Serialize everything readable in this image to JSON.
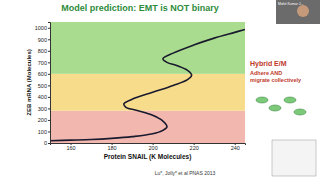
{
  "chart_data": {
    "type": "line",
    "title": "Model prediction: EMT is NOT binary",
    "x_label": "Protein SNAIL (K Molecules)",
    "y_label": "ZEB mRNA (Molecules)",
    "xlim": [
      150,
      245
    ],
    "xticks": [
      160,
      180,
      200,
      220,
      240
    ],
    "ylim": [
      0,
      1050
    ],
    "yticks": [
      0,
      100,
      200,
      300,
      400,
      500,
      600,
      700,
      800,
      900,
      1000
    ],
    "bands": [
      {
        "from": 0,
        "to": 280,
        "color": "#f2b8b0"
      },
      {
        "from": 280,
        "to": 600,
        "color": "#f7dc8c"
      },
      {
        "from": 600,
        "to": 1050,
        "color": "#a9dc8e"
      }
    ],
    "series": [
      {
        "color": "#1a1a2e",
        "x": [
          150,
          160,
          170,
          180,
          190,
          200,
          205,
          207,
          205,
          200,
          193,
          187,
          186,
          190,
          200,
          210,
          217,
          219,
          217,
          212,
          207,
          205,
          210,
          220,
          230,
          240,
          245
        ],
        "values": [
          20,
          25,
          30,
          40,
          55,
          80,
          110,
          140,
          190,
          240,
          280,
          310,
          340,
          380,
          440,
          500,
          550,
          590,
          630,
          670,
          700,
          730,
          780,
          850,
          910,
          960,
          985
        ]
      }
    ],
    "annotations": [
      "Hybrid E/M",
      "Adhere AND migrate collectively"
    ],
    "citation": "Lu*, Jolly* et al PNAS 2013",
    "speaker": "Mohit Kumar J..."
  }
}
